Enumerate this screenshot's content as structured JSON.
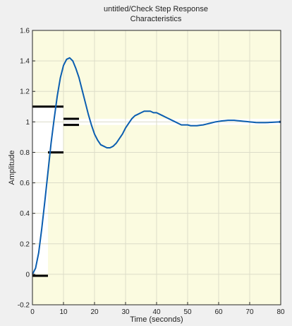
{
  "chart_data": {
    "type": "line",
    "title": [
      "untitled/Check Step Response",
      "Characteristics"
    ],
    "xlabel": "Time (seconds)",
    "ylabel": "Amplitude",
    "xlim": [
      0,
      80
    ],
    "ylim": [
      -0.2,
      1.6
    ],
    "xticks": [
      0,
      10,
      20,
      30,
      40,
      50,
      60,
      70,
      80
    ],
    "yticks": [
      -0.2,
      0,
      0.2,
      0.4,
      0.6,
      0.8,
      1,
      1.2,
      1.4,
      1.6
    ],
    "grid": true,
    "series": [
      {
        "color": "#0b5eb0",
        "x": [
          0,
          1,
          2,
          3,
          4,
          5,
          6,
          7,
          8,
          9,
          10,
          11,
          12,
          13,
          14,
          15,
          16,
          17,
          18,
          19,
          20,
          21,
          22,
          23,
          24,
          25,
          26,
          27,
          28,
          29,
          30,
          31,
          32,
          33,
          34,
          35,
          36,
          37,
          38,
          39,
          40,
          41,
          42,
          43,
          44,
          45,
          46,
          47,
          48,
          49,
          50,
          51,
          52,
          53,
          54,
          55,
          56,
          57,
          58,
          59,
          60,
          61,
          62,
          63,
          64,
          65,
          66,
          67,
          68,
          69,
          70,
          71,
          72,
          73,
          74,
          75,
          76,
          77,
          78,
          79,
          80
        ],
        "y": [
          0.0,
          0.04,
          0.14,
          0.3,
          0.48,
          0.67,
          0.86,
          1.02,
          1.17,
          1.29,
          1.37,
          1.41,
          1.42,
          1.4,
          1.35,
          1.29,
          1.21,
          1.13,
          1.05,
          0.98,
          0.92,
          0.88,
          0.85,
          0.84,
          0.83,
          0.83,
          0.84,
          0.86,
          0.89,
          0.92,
          0.96,
          0.99,
          1.02,
          1.04,
          1.05,
          1.06,
          1.07,
          1.07,
          1.07,
          1.06,
          1.06,
          1.05,
          1.04,
          1.03,
          1.02,
          1.01,
          1.0,
          0.99,
          0.98,
          0.98,
          0.98,
          0.975,
          0.975,
          0.975,
          0.978,
          0.98,
          0.985,
          0.99,
          0.995,
          1.0,
          1.003,
          1.006,
          1.008,
          1.01,
          1.01,
          1.01,
          1.008,
          1.006,
          1.004,
          1.002,
          1.0,
          0.998,
          0.996,
          0.995,
          0.995,
          0.995,
          0.996,
          0.997,
          0.998,
          0.999,
          1.0
        ]
      }
    ],
    "bounds": {
      "segments": [
        {
          "x": [
            0,
            10
          ],
          "y": [
            1.1,
            1.1
          ]
        },
        {
          "x": [
            5,
            10
          ],
          "y": [
            0.8,
            0.8
          ]
        },
        {
          "x": [
            0,
            5
          ],
          "y": [
            -0.01,
            -0.01
          ]
        },
        {
          "x": [
            10,
            15
          ],
          "y": [
            1.02,
            1.02
          ]
        },
        {
          "x": [
            10,
            15
          ],
          "y": [
            0.98,
            0.98
          ]
        },
        {
          "x": [
            79.5,
            80
          ],
          "y": [
            1.0,
            1.0
          ]
        }
      ],
      "white_regions": [
        {
          "x": [
            0,
            5
          ],
          "y": [
            -0.01,
            1.1
          ]
        },
        {
          "x": [
            5,
            10
          ],
          "y": [
            0.8,
            1.1
          ]
        },
        {
          "x": [
            10,
            80
          ],
          "y": [
            0.98,
            1.02
          ]
        }
      ]
    }
  }
}
